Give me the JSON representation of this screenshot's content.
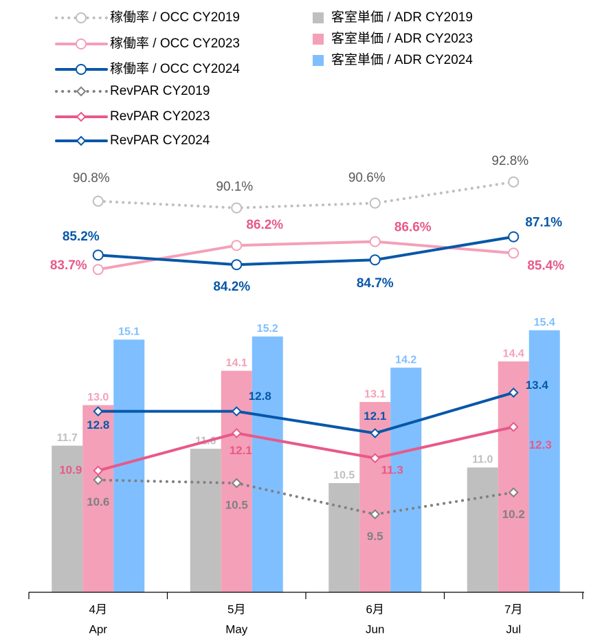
{
  "chart_data": [
    {
      "type": "line",
      "ylim": [
        82,
        94
      ],
      "series": [
        {
          "name": "稼働率 / OCC CY2019",
          "color": "#bfbfbf",
          "dash": "dotted",
          "marker": "circle",
          "values": [
            90.8,
            90.1,
            90.6,
            92.8
          ],
          "value_labels": [
            "90.8%",
            "90.1%",
            "90.6%",
            "92.8%"
          ]
        },
        {
          "name": "稼働率 / OCC CY2023",
          "color": "#f4a0b8",
          "marker": "circle",
          "values": [
            83.7,
            86.2,
            86.6,
            85.4
          ],
          "value_labels": [
            "83.7%",
            "86.2%",
            "86.6%",
            "85.4%"
          ]
        },
        {
          "name": "稼働率 / OCC CY2024",
          "color": "#0757a8",
          "marker": "circle",
          "values": [
            85.2,
            84.2,
            84.7,
            87.1
          ],
          "value_labels": [
            "85.2%",
            "84.2%",
            "84.7%",
            "87.1%"
          ]
        }
      ]
    },
    {
      "type": "combo",
      "categories": [
        [
          "4月",
          "Apr"
        ],
        [
          "5月",
          "May"
        ],
        [
          "6月",
          "Jun"
        ],
        [
          "7月",
          "Jul"
        ]
      ],
      "ylim": [
        7,
        17
      ],
      "series": [
        {
          "name": "客室単価 / ADR CY2019",
          "type": "bar",
          "color": "#bfbfbf",
          "values": [
            11.7,
            11.6,
            10.5,
            11.0
          ],
          "value_labels": [
            "11.7",
            "11.6",
            "10.5",
            "11.0"
          ]
        },
        {
          "name": "客室単価 / ADR CY2023",
          "type": "bar",
          "color": "#f4a0b8",
          "values": [
            13.0,
            14.1,
            13.1,
            14.4
          ],
          "value_labels": [
            "13.0",
            "14.1",
            "13.1",
            "14.4"
          ]
        },
        {
          "name": "客室単価 / ADR CY2024",
          "type": "bar",
          "color": "#7fbfff",
          "values": [
            15.1,
            15.2,
            14.2,
            15.4
          ]
        },
        {
          "name": "RevPAR CY2019",
          "type": "line",
          "color": "#808080",
          "dash": "dotted",
          "marker": "diamond",
          "values": [
            10.6,
            10.5,
            9.5,
            10.2
          ]
        },
        {
          "name": "RevPAR CY2023",
          "type": "line",
          "color": "#e8598a",
          "marker": "diamond",
          "values": [
            10.9,
            12.1,
            11.3,
            12.3
          ]
        },
        {
          "name": "RevPAR CY2024",
          "type": "line",
          "color": "#0757a8",
          "marker": "diamond",
          "values": [
            12.8,
            12.8,
            12.1,
            13.4
          ]
        }
      ]
    }
  ]
}
